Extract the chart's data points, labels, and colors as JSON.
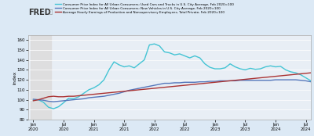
{
  "title": "FRED",
  "background_color": "#dce9f5",
  "plot_bg_color": "#e8eef5",
  "header_bg_color": "#ffffff",
  "shaded_color": "#dddddd",
  "ylabel": "Index",
  "ylim": [
    80,
    165
  ],
  "yticks": [
    80,
    90,
    100,
    110,
    120,
    130,
    140,
    150,
    160
  ],
  "legend": [
    {
      "label": "Consumer Price Index for All Urban Consumers: Used Cars and Trucks in U.S. City Average, Feb 2020=100",
      "color": "#44c4d4",
      "lw": 1.0
    },
    {
      "label": "Consumer Price Index for All Urban Consumers: New Vehicles in U.S. City Average, Feb 2020=100",
      "color": "#5577bb",
      "lw": 1.0
    },
    {
      "label": "Average Hourly Earnings of Production and Nonsupervisory Employees, Total Private, Feb 2020=100",
      "color": "#aa3333",
      "lw": 1.0
    }
  ],
  "used_cars": [
    99.5,
    100.0,
    97.5,
    92.5,
    91.0,
    93.0,
    97.0,
    101.5,
    101.0,
    103.0,
    106.5,
    110.0,
    112.0,
    115.0,
    120.0,
    130.0,
    138.0,
    135.0,
    133.0,
    134.0,
    132.0,
    136.0,
    140.0,
    155.0,
    156.0,
    154.0,
    148.0,
    147.0,
    145.0,
    146.0,
    144.0,
    142.0,
    144.0,
    142.0,
    136.0,
    132.5,
    131.0,
    131.0,
    132.0,
    136.0,
    133.0,
    131.0,
    130.0,
    131.5,
    130.5,
    131.0,
    133.0,
    134.0,
    133.0,
    133.5,
    130.0,
    128.0,
    127.0,
    125.0,
    122.0,
    119.0
  ],
  "new_vehicles": [
    100.5,
    100.0,
    99.5,
    98.5,
    98.0,
    98.5,
    99.0,
    99.5,
    100.0,
    100.5,
    101.0,
    102.0,
    102.5,
    103.0,
    103.5,
    104.5,
    105.5,
    106.5,
    108.0,
    109.5,
    110.5,
    111.5,
    112.5,
    113.5,
    114.5,
    115.5,
    116.5,
    116.5,
    117.0,
    117.0,
    117.5,
    117.5,
    117.5,
    118.0,
    118.0,
    118.5,
    118.5,
    119.0,
    119.0,
    119.0,
    119.0,
    119.5,
    119.5,
    119.5,
    119.5,
    119.5,
    119.5,
    119.5,
    120.0,
    120.0,
    120.0,
    120.0,
    120.0,
    119.5,
    119.0,
    118.0
  ],
  "avg_earnings": [
    99.0,
    100.0,
    101.5,
    103.0,
    103.5,
    103.0,
    103.0,
    103.5,
    103.5,
    104.0,
    104.5,
    105.0,
    105.5,
    106.0,
    106.5,
    107.0,
    107.5,
    108.0,
    108.5,
    109.0,
    109.5,
    110.0,
    110.5,
    111.0,
    111.5,
    112.0,
    112.5,
    113.0,
    113.5,
    114.0,
    114.5,
    115.0,
    115.5,
    116.0,
    116.5,
    117.0,
    117.5,
    118.0,
    118.5,
    119.0,
    119.5,
    120.0,
    120.5,
    121.0,
    121.5,
    122.0,
    122.5,
    123.0,
    123.5,
    124.0,
    124.5,
    125.0,
    125.5,
    126.0,
    126.5,
    127.0
  ],
  "xtick_labels": [
    "Jan\n2020",
    "Jul\n2020",
    "Jan\n2021",
    "Jul\n2021",
    "Jan\n2022",
    "Jul\n2022",
    "Jan\n2023",
    "Jul\n2023",
    "Jan\n2024",
    "Jul\n2024"
  ],
  "xtick_positions": [
    0,
    6,
    12,
    18,
    24,
    30,
    36,
    42,
    48,
    54
  ],
  "shaded_start": -0.5,
  "shaded_end": 3.5,
  "fred_logo_color": "#333333",
  "grid_color": "#ffffff",
  "spine_color": "#aaaaaa"
}
